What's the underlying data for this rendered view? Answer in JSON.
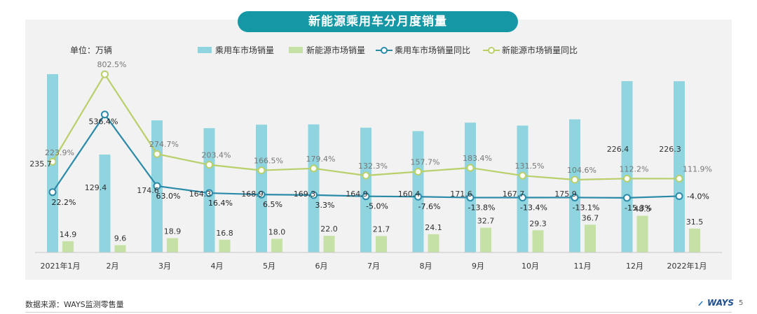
{
  "header": {
    "title": "新能源乘用车分月度销量"
  },
  "footer": {
    "source": "数据来源：WAYS监测零售量",
    "logo": "WAYS",
    "page": "5"
  },
  "colors": {
    "bar1": "#8fd4df",
    "bar2": "#c5e1a5",
    "line1": "#2a8aa8",
    "line2": "#b8cf6a",
    "title_bg": "#1597a6"
  },
  "chart_data": {
    "type": "bar+line",
    "unit_label": "单位：万辆",
    "categories": [
      "2021年1月",
      "2月",
      "3月",
      "4月",
      "5月",
      "6月",
      "7月",
      "8月",
      "9月",
      "10月",
      "11月",
      "12月",
      "2022年1月"
    ],
    "series": [
      {
        "name": "乘用车市场销量",
        "type": "bar",
        "values": [
          235.7,
          129.4,
          174.6,
          164.3,
          168.9,
          169.3,
          164.9,
          160.4,
          171.6,
          167.7,
          175.9,
          226.4,
          226.3
        ],
        "labels": [
          "235.7",
          "129.4",
          "174.6",
          "164.3",
          "168.9",
          "169.3",
          "164.9",
          "160.4",
          "171.6",
          "167.7",
          "175.9",
          "226.4",
          "226.3"
        ]
      },
      {
        "name": "新能源市场销量",
        "type": "bar",
        "values": [
          14.9,
          9.6,
          18.9,
          16.8,
          18.0,
          22.0,
          21.7,
          24.1,
          32.7,
          29.3,
          36.7,
          48.5,
          31.5
        ],
        "labels": [
          "14.9",
          "9.6",
          "18.9",
          "16.8",
          "18.0",
          "22.0",
          "21.7",
          "24.1",
          "32.7",
          "29.3",
          "36.7",
          "48.5",
          "31.5"
        ]
      },
      {
        "name": "乘用车市场销量同比",
        "type": "line",
        "values": [
          22.2,
          536.4,
          63.0,
          16.4,
          6.5,
          3.3,
          -5.0,
          -7.6,
          -13.8,
          -13.4,
          -13.1,
          -15.3,
          -4.0
        ],
        "labels": [
          "22.2%",
          "536.4%",
          "63.0%",
          "16.4%",
          "6.5%",
          "3.3%",
          "-5.0%",
          "-7.6%",
          "-13.8%",
          "-13.4%",
          "-13.1%",
          "-15.3%",
          "-4.0%"
        ]
      },
      {
        "name": "新能源市场销量同比",
        "type": "line",
        "values": [
          223.9,
          802.5,
          274.7,
          203.4,
          166.5,
          179.4,
          132.3,
          157.7,
          183.4,
          131.5,
          104.6,
          112.2,
          111.9
        ],
        "labels": [
          "223.9%",
          "802.5%",
          "274.7%",
          "203.4%",
          "166.5%",
          "179.4%",
          "132.3%",
          "157.7%",
          "183.4%",
          "131.5%",
          "104.6%",
          "112.2%",
          "111.9%"
        ]
      }
    ]
  }
}
